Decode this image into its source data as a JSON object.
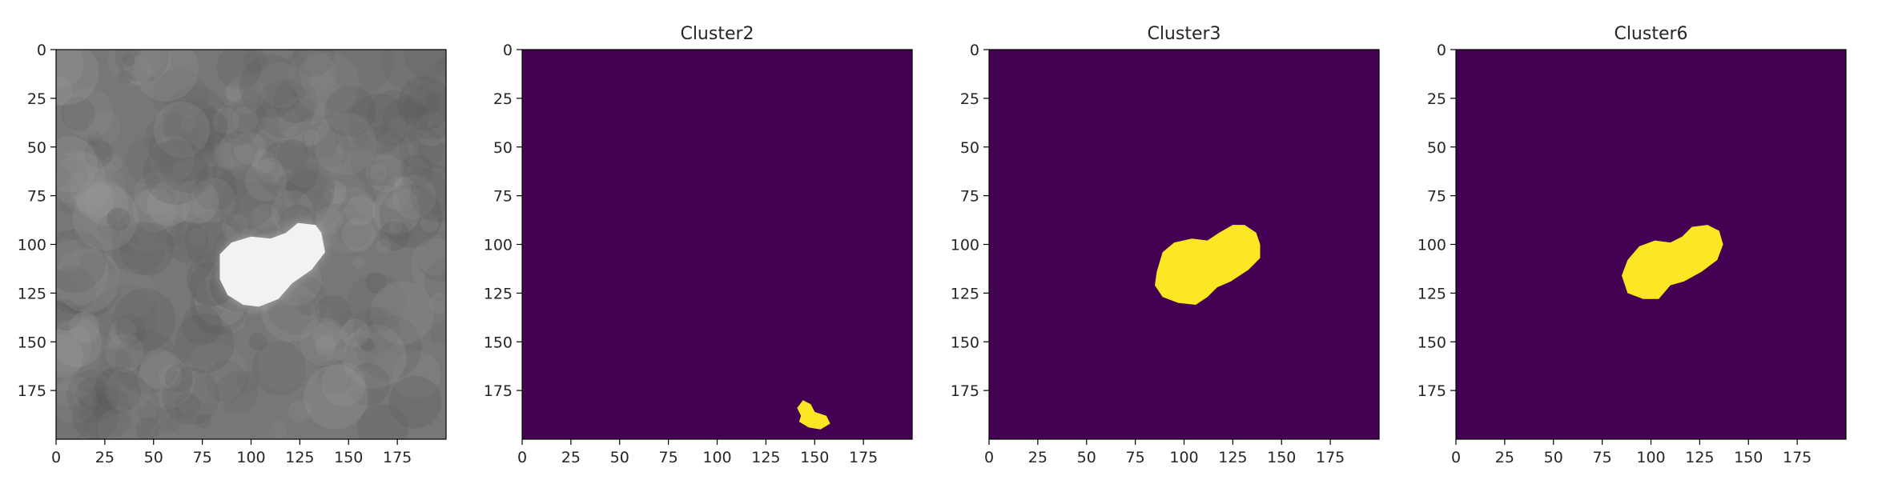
{
  "chart_data": [
    {
      "type": "image",
      "title": "",
      "colormap": "gray",
      "xlim": [
        0,
        200
      ],
      "ylim": [
        200,
        0
      ],
      "x_ticks": [
        "0",
        "25",
        "50",
        "75",
        "100",
        "125",
        "150",
        "175"
      ],
      "y_ticks": [
        "0",
        "25",
        "50",
        "75",
        "100",
        "125",
        "150",
        "175"
      ],
      "colors": {
        "background": "#777777",
        "dark": "#5a5a5a",
        "light": "#9a9a9a",
        "blob": "#f2f2f2"
      },
      "content": "grayscale noisy texture with a bright heart-shaped blob",
      "bright_blob_points": [
        [
          84,
          105
        ],
        [
          90,
          99
        ],
        [
          100,
          96
        ],
        [
          110,
          97
        ],
        [
          118,
          94
        ],
        [
          124,
          89
        ],
        [
          133,
          90
        ],
        [
          136,
          94
        ],
        [
          138,
          104
        ],
        [
          131,
          113
        ],
        [
          121,
          120
        ],
        [
          114,
          128
        ],
        [
          104,
          132
        ],
        [
          96,
          131
        ],
        [
          88,
          126
        ],
        [
          84,
          118
        ]
      ]
    },
    {
      "type": "image",
      "title": "Cluster2",
      "colormap": "viridis",
      "xlim": [
        0,
        200
      ],
      "ylim": [
        200,
        0
      ],
      "x_ticks": [
        "0",
        "25",
        "50",
        "75",
        "100",
        "125",
        "150",
        "175"
      ],
      "y_ticks": [
        "0",
        "25",
        "50",
        "75",
        "100",
        "125",
        "150",
        "175"
      ],
      "colors": {
        "background": "#440154",
        "mask": "#fde725"
      },
      "mask_points": [
        [
          141,
          184
        ],
        [
          144,
          180
        ],
        [
          148,
          182
        ],
        [
          150,
          186
        ],
        [
          156,
          188
        ],
        [
          158,
          192
        ],
        [
          153,
          195
        ],
        [
          147,
          194
        ],
        [
          142,
          191
        ],
        [
          143,
          188
        ]
      ]
    },
    {
      "type": "image",
      "title": "Cluster3",
      "colormap": "viridis",
      "xlim": [
        0,
        200
      ],
      "ylim": [
        200,
        0
      ],
      "x_ticks": [
        "0",
        "25",
        "50",
        "75",
        "100",
        "125",
        "150",
        "175"
      ],
      "y_ticks": [
        "0",
        "25",
        "50",
        "75",
        "100",
        "125",
        "150",
        "175"
      ],
      "colors": {
        "background": "#440154",
        "mask": "#fde725"
      },
      "mask_points": [
        [
          86,
          114
        ],
        [
          89,
          104
        ],
        [
          95,
          99
        ],
        [
          104,
          97
        ],
        [
          112,
          98
        ],
        [
          118,
          94
        ],
        [
          125,
          90
        ],
        [
          131,
          90
        ],
        [
          137,
          94
        ],
        [
          139,
          100
        ],
        [
          139,
          107
        ],
        [
          133,
          113
        ],
        [
          124,
          119
        ],
        [
          117,
          122
        ],
        [
          112,
          127
        ],
        [
          106,
          131
        ],
        [
          97,
          130
        ],
        [
          89,
          127
        ],
        [
          85,
          121
        ]
      ]
    },
    {
      "type": "image",
      "title": "Cluster6",
      "colormap": "viridis",
      "xlim": [
        0,
        200
      ],
      "ylim": [
        200,
        0
      ],
      "x_ticks": [
        "0",
        "25",
        "50",
        "75",
        "100",
        "125",
        "150",
        "175"
      ],
      "y_ticks": [
        "0",
        "25",
        "50",
        "75",
        "100",
        "125",
        "150",
        "175"
      ],
      "colors": {
        "background": "#440154",
        "mask": "#fde725"
      },
      "mask_points": [
        [
          85,
          116
        ],
        [
          88,
          108
        ],
        [
          94,
          101
        ],
        [
          102,
          98
        ],
        [
          110,
          99
        ],
        [
          116,
          96
        ],
        [
          121,
          91
        ],
        [
          129,
          90
        ],
        [
          135,
          93
        ],
        [
          137,
          100
        ],
        [
          134,
          108
        ],
        [
          126,
          114
        ],
        [
          117,
          119
        ],
        [
          110,
          121
        ],
        [
          104,
          128
        ],
        [
          96,
          128
        ],
        [
          88,
          125
        ]
      ]
    }
  ]
}
